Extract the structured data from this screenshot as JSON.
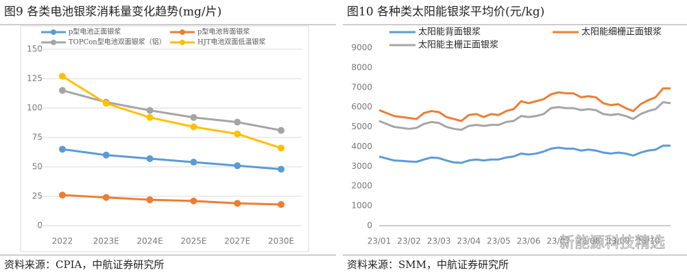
{
  "chart_data": [
    {
      "type": "line",
      "title": "图9 各类电池银浆消耗量变化趋势(mg/片)",
      "source": "资料来源：CPIA，中航证券研究所",
      "categories": [
        "2022",
        "2023E",
        "2024E",
        "2025E",
        "2027E",
        "2030E"
      ],
      "ylim": [
        0,
        150
      ],
      "yticks": [
        0,
        25,
        50,
        75,
        100,
        125,
        150
      ],
      "grid": true,
      "markers": true,
      "series": [
        {
          "name": "p型电池正面银浆",
          "color": "#5b9bd5",
          "values": [
            65,
            60,
            57,
            54,
            51,
            48
          ]
        },
        {
          "name": "p型电池背面银浆",
          "color": "#ed7d31",
          "values": [
            26,
            24,
            22,
            21,
            19,
            18
          ]
        },
        {
          "name": "TOPCon型电池双面银浆（铝）",
          "color": "#a5a5a5",
          "values": [
            115,
            105,
            98,
            92,
            88,
            81
          ]
        },
        {
          "name": "HJT电池双面低温银浆",
          "color": "#ffc000",
          "values": [
            127,
            104,
            92,
            84,
            78,
            66
          ]
        }
      ]
    },
    {
      "type": "line",
      "title": "图10 各种类太阳能银浆平均价(元/kg)",
      "source": "资料来源：SMM，中航证券研究所",
      "watermark": "新能源科技精选",
      "categories": [
        "23/01",
        null,
        null,
        null,
        "23/02",
        null,
        null,
        null,
        "23/03",
        null,
        null,
        null,
        "23/04",
        null,
        null,
        null,
        "23/05",
        null,
        null,
        null,
        "23/06",
        null,
        null,
        null,
        "23/07",
        null,
        null,
        null,
        "23/08",
        null,
        null,
        null,
        "23/09",
        null,
        null,
        null,
        "23/10",
        null,
        null,
        null
      ],
      "ylim": [
        0,
        9000
      ],
      "yticks": [
        0,
        1000,
        2000,
        3000,
        4000,
        5000,
        6000,
        7000,
        8000,
        9000
      ],
      "grid": false,
      "markers": false,
      "series": [
        {
          "name": "太阳能背面银浆",
          "color": "#5b9bd5",
          "values": [
            3500,
            3400,
            3300,
            3280,
            3250,
            3230,
            3350,
            3450,
            3420,
            3300,
            3200,
            3180,
            3300,
            3350,
            3300,
            3350,
            3350,
            3450,
            3500,
            3650,
            3600,
            3650,
            3750,
            3900,
            3950,
            3900,
            3900,
            3800,
            3850,
            3800,
            3700,
            3650,
            3700,
            3650,
            3550,
            3700,
            3800,
            3850,
            4050,
            4050
          ]
        },
        {
          "name": "太阳能细栅正面银浆",
          "color": "#ed7d31",
          "values": [
            5850,
            5700,
            5550,
            5500,
            5450,
            5400,
            5700,
            5800,
            5750,
            5500,
            5400,
            5300,
            5600,
            5650,
            5500,
            5650,
            5600,
            5800,
            5900,
            6300,
            6200,
            6300,
            6400,
            6650,
            6750,
            6700,
            6700,
            6500,
            6550,
            6500,
            6200,
            6100,
            6150,
            5950,
            5800,
            6150,
            6350,
            6500,
            6950,
            6950
          ]
        },
        {
          "name": "太阳能主栅正面银浆",
          "color": "#a5a5a5",
          "values": [
            5300,
            5150,
            5000,
            4950,
            4900,
            4950,
            5150,
            5250,
            5200,
            5000,
            4900,
            4850,
            5050,
            5100,
            5050,
            5100,
            5100,
            5250,
            5300,
            5550,
            5500,
            5550,
            5650,
            5950,
            6000,
            5950,
            5950,
            5850,
            5900,
            5850,
            5650,
            5600,
            5650,
            5550,
            5400,
            5650,
            5800,
            5900,
            6250,
            6200
          ]
        }
      ]
    }
  ]
}
